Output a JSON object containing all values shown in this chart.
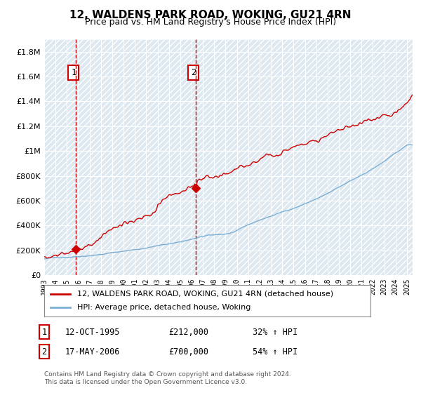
{
  "title": "12, WALDENS PARK ROAD, WOKING, GU21 4RN",
  "subtitle": "Price paid vs. HM Land Registry's House Price Index (HPI)",
  "ytick_values": [
    0,
    200000,
    400000,
    600000,
    800000,
    1000000,
    1200000,
    1400000,
    1600000,
    1800000
  ],
  "ylim": [
    0,
    1900000
  ],
  "hpi_color": "#7bafd4",
  "property_color": "#cc0000",
  "sale1_date_x": 1995.79,
  "sale1_price": 212000,
  "sale1_label": "1",
  "sale2_date_x": 2006.38,
  "sale2_price": 700000,
  "sale2_label": "2",
  "legend_property": "12, WALDENS PARK ROAD, WOKING, GU21 4RN (detached house)",
  "legend_hpi": "HPI: Average price, detached house, Woking",
  "annotation1_date": "12-OCT-1995",
  "annotation1_price": "£212,000",
  "annotation1_hpi": "32% ↑ HPI",
  "annotation2_date": "17-MAY-2006",
  "annotation2_price": "£700,000",
  "annotation2_hpi": "54% ↑ HPI",
  "footer": "Contains HM Land Registry data © Crown copyright and database right 2024.\nThis data is licensed under the Open Government Licence v3.0.",
  "background_color": "#dde8f0",
  "hatch_color": "#c8d8e8",
  "grid_color": "#ffffff",
  "xlim_start": 1993.0,
  "xlim_end": 2025.5
}
